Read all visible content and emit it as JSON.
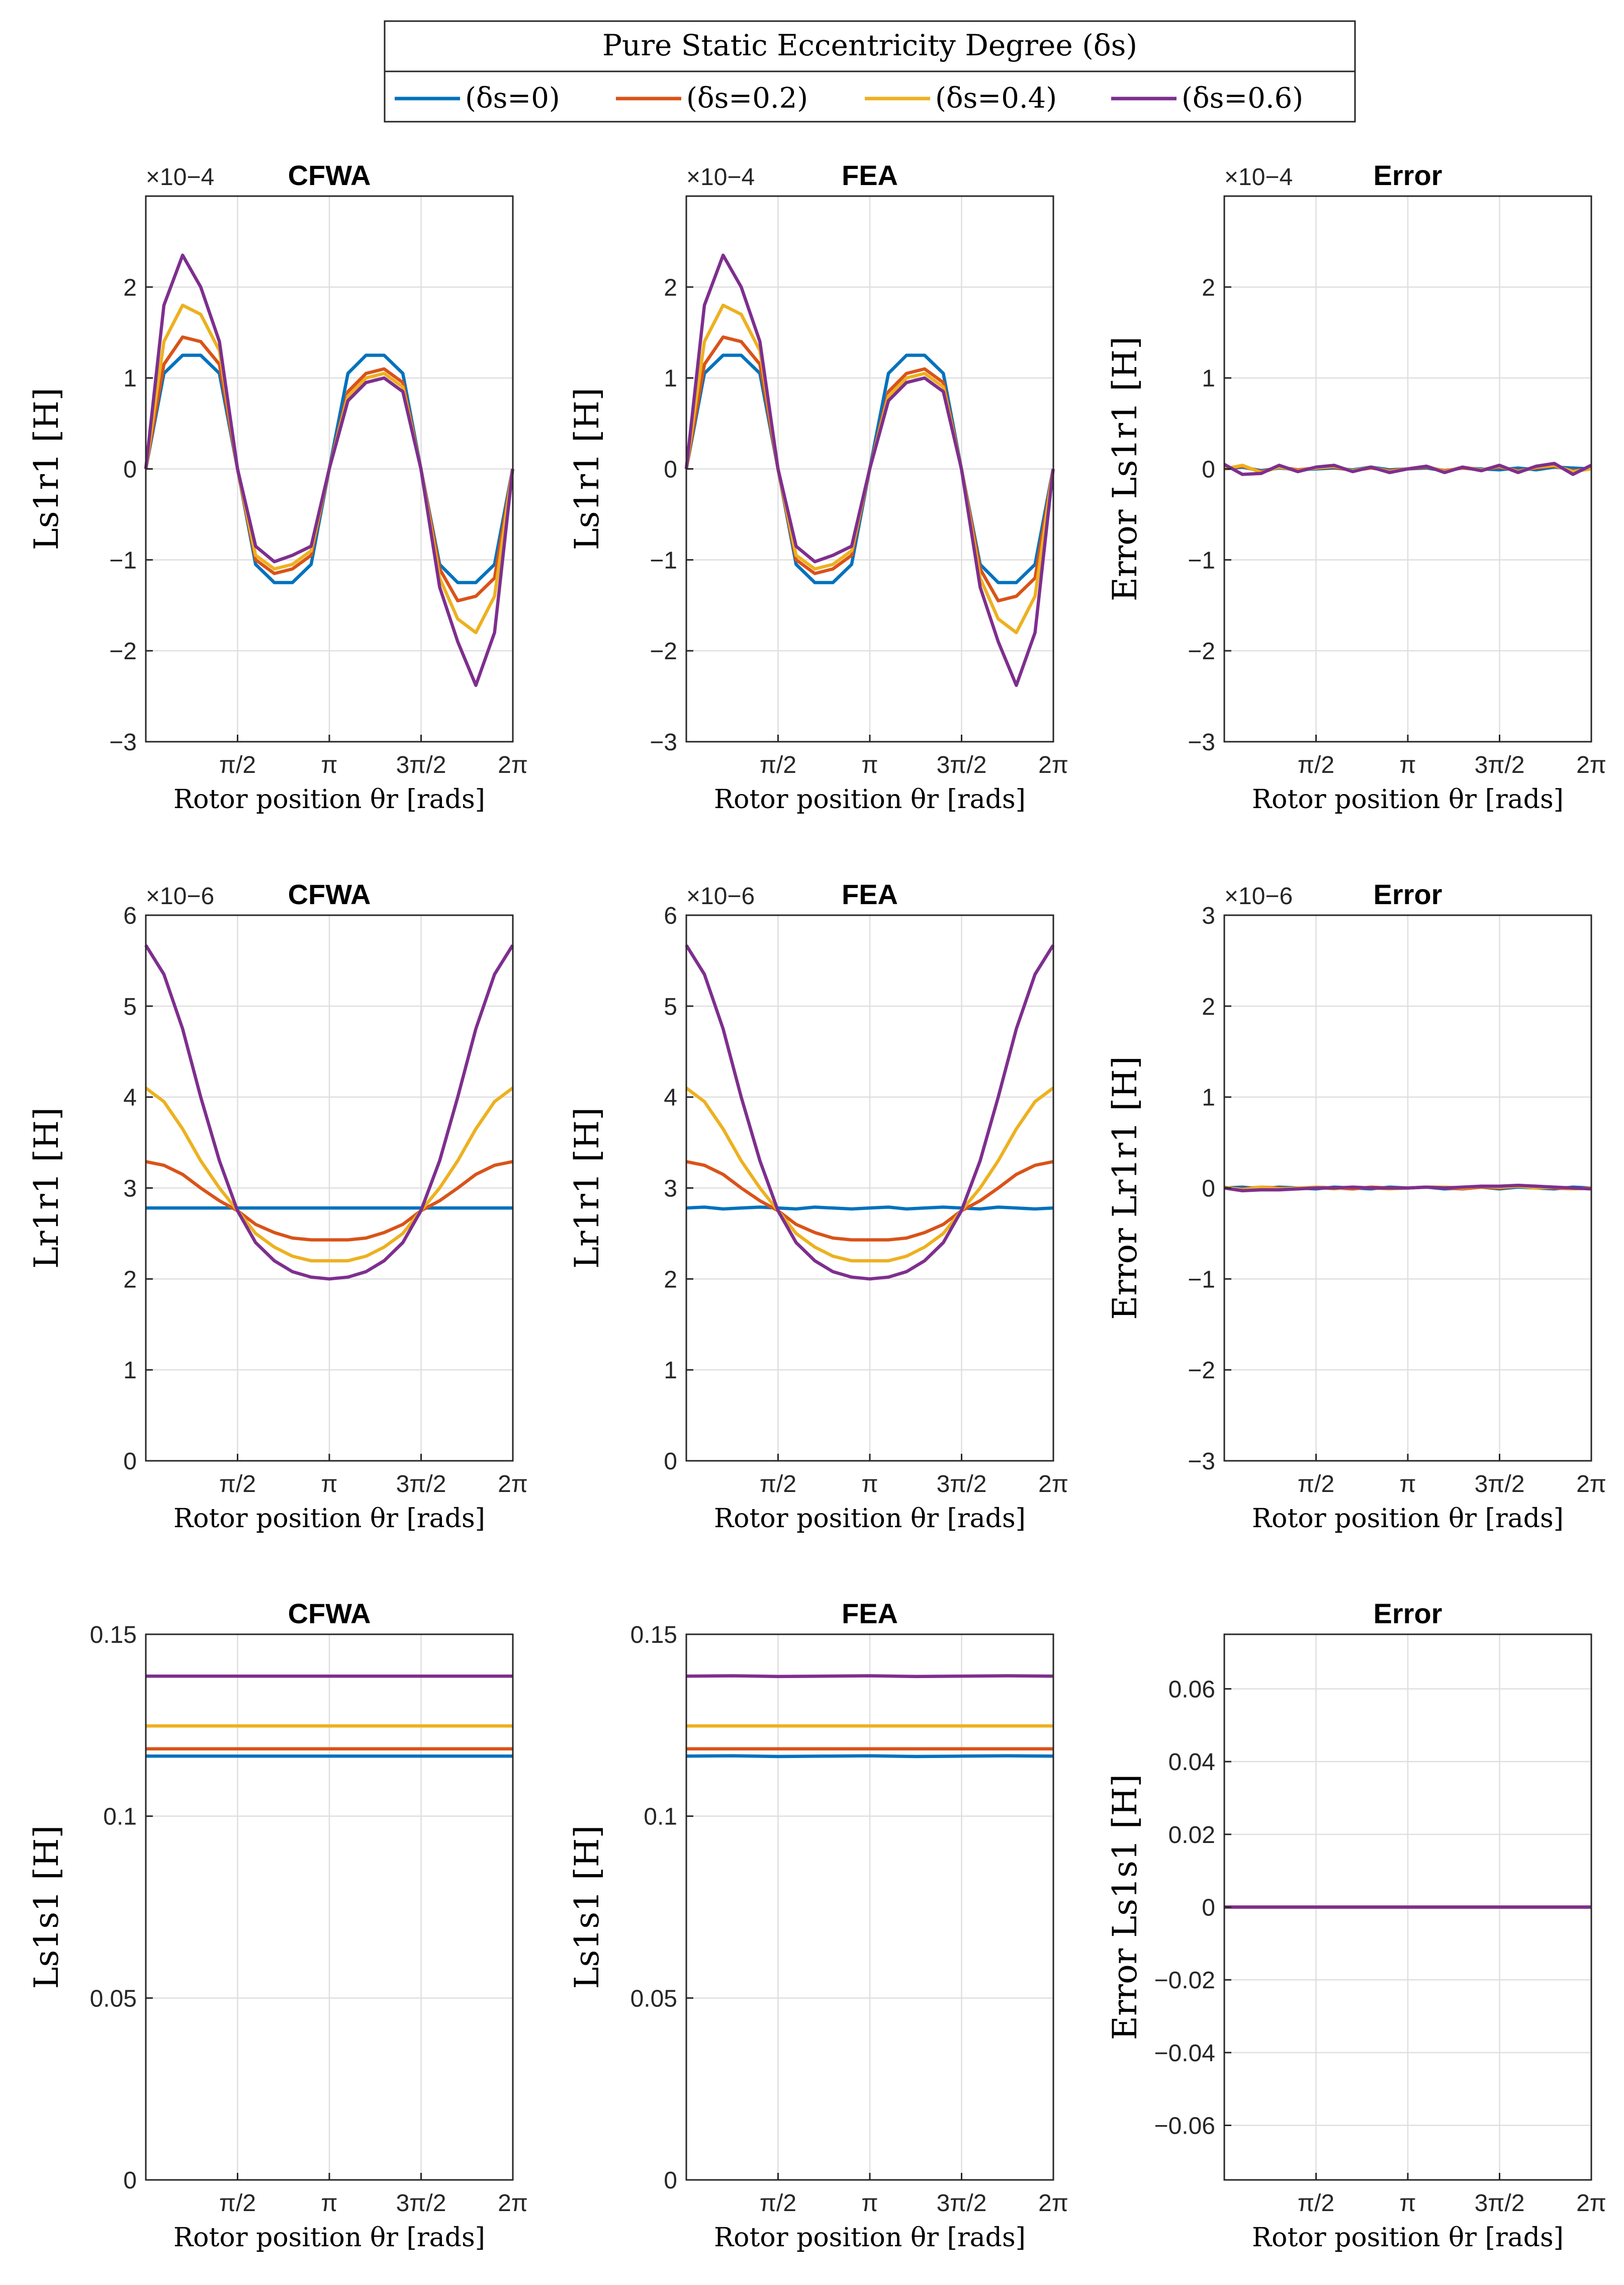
{
  "legend": {
    "title": "Pure Static Eccentricity Degree (δs)",
    "entries": [
      "(δs=0)",
      "(δs=0.2)",
      "(δs=0.4)",
      "(δs=0.6)"
    ]
  },
  "colors": {
    "series": [
      "#0072BD",
      "#D95319",
      "#EDB120",
      "#7E2F8E"
    ],
    "grid": "#DFDFDF",
    "axis": "#262626"
  },
  "common": {
    "xlabel": "Rotor position θr [rads]",
    "xticks": [
      "π/2",
      "π",
      "3π/2",
      "2π"
    ]
  },
  "chart_data": [
    {
      "type": "line",
      "title": "CFWA",
      "ylabel": "Ls1r1 [H]",
      "exponent_label": "×10−4",
      "xlim": [
        0,
        6.2832
      ],
      "ylim": [
        -3,
        3
      ],
      "yticks": [
        "−3",
        "−2",
        "−1",
        "0",
        "1",
        "2"
      ],
      "x": [
        0.0,
        0.31,
        0.63,
        0.94,
        1.26,
        1.57,
        1.88,
        2.2,
        2.51,
        2.83,
        3.14,
        3.46,
        3.77,
        4.08,
        4.4,
        4.71,
        5.03,
        5.34,
        5.65,
        5.97,
        6.28
      ],
      "series": [
        {
          "name": "(δs=0)",
          "values": [
            0,
            1.05,
            1.25,
            1.25,
            1.05,
            0,
            -1.05,
            -1.25,
            -1.25,
            -1.05,
            0,
            1.05,
            1.25,
            1.25,
            1.05,
            0,
            -1.05,
            -1.25,
            -1.25,
            -1.05,
            0
          ]
        },
        {
          "name": "(δs=0.2)",
          "values": [
            0,
            1.15,
            1.45,
            1.4,
            1.15,
            0,
            -1.0,
            -1.15,
            -1.1,
            -0.95,
            0,
            0.85,
            1.05,
            1.1,
            0.95,
            0,
            -1.1,
            -1.45,
            -1.4,
            -1.2,
            0
          ]
        },
        {
          "name": "(δs=0.4)",
          "values": [
            0,
            1.4,
            1.8,
            1.7,
            1.3,
            0,
            -0.95,
            -1.1,
            -1.05,
            -0.9,
            0,
            0.8,
            1.0,
            1.05,
            0.9,
            0,
            -1.2,
            -1.65,
            -1.8,
            -1.4,
            0
          ]
        },
        {
          "name": "(δs=0.6)",
          "values": [
            0,
            1.8,
            2.35,
            2.0,
            1.4,
            0,
            -0.85,
            -1.02,
            -0.95,
            -0.85,
            0,
            0.75,
            0.95,
            1.0,
            0.85,
            0,
            -1.3,
            -1.9,
            -2.38,
            -1.8,
            0
          ]
        }
      ]
    },
    {
      "type": "line",
      "title": "FEA",
      "ylabel": "Ls1r1 [H]",
      "exponent_label": "×10−4",
      "xlim": [
        0,
        6.2832
      ],
      "ylim": [
        -3,
        3
      ],
      "yticks": [
        "−3",
        "−2",
        "−1",
        "0",
        "1",
        "2"
      ],
      "x": [
        0.0,
        0.31,
        0.63,
        0.94,
        1.26,
        1.57,
        1.88,
        2.2,
        2.51,
        2.83,
        3.14,
        3.46,
        3.77,
        4.08,
        4.4,
        4.71,
        5.03,
        5.34,
        5.65,
        5.97,
        6.28
      ],
      "series": [
        {
          "name": "(δs=0)",
          "values": [
            0,
            1.05,
            1.25,
            1.25,
            1.05,
            0,
            -1.05,
            -1.25,
            -1.25,
            -1.05,
            0,
            1.05,
            1.25,
            1.25,
            1.05,
            0,
            -1.05,
            -1.25,
            -1.25,
            -1.05,
            0
          ]
        },
        {
          "name": "(δs=0.2)",
          "values": [
            0,
            1.15,
            1.45,
            1.4,
            1.15,
            0,
            -1.0,
            -1.15,
            -1.1,
            -0.95,
            0,
            0.85,
            1.05,
            1.1,
            0.95,
            0,
            -1.1,
            -1.45,
            -1.4,
            -1.2,
            0
          ]
        },
        {
          "name": "(δs=0.4)",
          "values": [
            0,
            1.4,
            1.8,
            1.7,
            1.3,
            0,
            -0.95,
            -1.1,
            -1.05,
            -0.9,
            0,
            0.8,
            1.0,
            1.05,
            0.9,
            0,
            -1.2,
            -1.65,
            -1.8,
            -1.4,
            0
          ]
        },
        {
          "name": "(δs=0.6)",
          "values": [
            0,
            1.8,
            2.35,
            2.0,
            1.4,
            0,
            -0.85,
            -1.02,
            -0.95,
            -0.85,
            0,
            0.75,
            0.95,
            1.0,
            0.85,
            0,
            -1.3,
            -1.9,
            -2.38,
            -1.8,
            0
          ]
        }
      ]
    },
    {
      "type": "line",
      "title": "Error",
      "ylabel": "Error Ls1r1 [H]",
      "exponent_label": "×10−4",
      "xlim": [
        0,
        6.2832
      ],
      "ylim": [
        -3,
        3
      ],
      "yticks": [
        "−3",
        "−2",
        "−1",
        "0",
        "1",
        "2"
      ],
      "x": [
        0.0,
        0.31,
        0.63,
        0.94,
        1.26,
        1.57,
        1.88,
        2.2,
        2.51,
        2.83,
        3.14,
        3.46,
        3.77,
        4.08,
        4.4,
        4.71,
        5.03,
        5.34,
        5.65,
        5.97,
        6.28
      ],
      "series": [
        {
          "name": "(δs=0)",
          "values": [
            0,
            0.02,
            -0.02,
            0.01,
            -0.01,
            0,
            0.01,
            -0.01,
            0.02,
            -0.01,
            0,
            0.01,
            -0.02,
            0.01,
            0,
            -0.01,
            0.01,
            -0.01,
            0.02,
            0.01,
            0
          ]
        },
        {
          "name": "(δs=0.2)",
          "values": [
            0,
            0.03,
            -0.03,
            0.02,
            -0.01,
            0.01,
            0.02,
            -0.02,
            0.01,
            -0.02,
            0,
            0.02,
            -0.02,
            0.01,
            -0.01,
            0.02,
            -0.02,
            0.01,
            0.03,
            -0.02,
            0
          ]
        },
        {
          "name": "(δs=0.4)",
          "values": [
            0,
            0.04,
            -0.04,
            0.02,
            -0.02,
            0.01,
            0.03,
            -0.02,
            0.02,
            -0.03,
            0,
            0.03,
            -0.03,
            0.02,
            -0.01,
            0.03,
            -0.03,
            0.02,
            0.04,
            -0.03,
            0
          ]
        },
        {
          "name": "(δs=0.6)",
          "values": [
            0.05,
            -0.06,
            -0.05,
            0.04,
            -0.03,
            0.02,
            0.04,
            -0.03,
            0.02,
            -0.04,
            0,
            0.03,
            -0.04,
            0.02,
            -0.02,
            0.04,
            -0.04,
            0.03,
            0.06,
            -0.06,
            0.04
          ]
        }
      ]
    },
    {
      "type": "line",
      "title": "CFWA",
      "ylabel": "Lr1r1 [H]",
      "exponent_label": "×10−6",
      "xlim": [
        0,
        6.2832
      ],
      "ylim": [
        0,
        6
      ],
      "yticks": [
        "0",
        "1",
        "2",
        "3",
        "4",
        "5",
        "6"
      ],
      "x": [
        0.0,
        0.31,
        0.63,
        0.94,
        1.26,
        1.57,
        1.88,
        2.2,
        2.51,
        2.83,
        3.14,
        3.46,
        3.77,
        4.08,
        4.4,
        4.71,
        5.03,
        5.34,
        5.65,
        5.97,
        6.28
      ],
      "series": [
        {
          "name": "(δs=0)",
          "values": [
            2.78,
            2.78,
            2.78,
            2.78,
            2.78,
            2.78,
            2.78,
            2.78,
            2.78,
            2.78,
            2.78,
            2.78,
            2.78,
            2.78,
            2.78,
            2.78,
            2.78,
            2.78,
            2.78,
            2.78,
            2.78
          ]
        },
        {
          "name": "(δs=0.2)",
          "values": [
            3.29,
            3.25,
            3.15,
            3.0,
            2.86,
            2.75,
            2.6,
            2.51,
            2.45,
            2.43,
            2.43,
            2.43,
            2.45,
            2.51,
            2.6,
            2.75,
            2.86,
            3.0,
            3.15,
            3.25,
            3.29
          ]
        },
        {
          "name": "(δs=0.4)",
          "values": [
            4.1,
            3.95,
            3.65,
            3.3,
            3.0,
            2.75,
            2.5,
            2.35,
            2.25,
            2.2,
            2.2,
            2.2,
            2.25,
            2.35,
            2.5,
            2.75,
            3.0,
            3.3,
            3.65,
            3.95,
            4.1
          ]
        },
        {
          "name": "(δs=0.6)",
          "values": [
            5.67,
            5.35,
            4.75,
            4.0,
            3.3,
            2.75,
            2.4,
            2.2,
            2.08,
            2.02,
            2.0,
            2.02,
            2.08,
            2.2,
            2.4,
            2.75,
            3.3,
            4.0,
            4.75,
            5.35,
            5.67
          ]
        }
      ]
    },
    {
      "type": "line",
      "title": "FEA",
      "ylabel": "Lr1r1 [H]",
      "exponent_label": "×10−6",
      "xlim": [
        0,
        6.2832
      ],
      "ylim": [
        0,
        6
      ],
      "yticks": [
        "0",
        "1",
        "2",
        "3",
        "4",
        "5",
        "6"
      ],
      "x": [
        0.0,
        0.31,
        0.63,
        0.94,
        1.26,
        1.57,
        1.88,
        2.2,
        2.51,
        2.83,
        3.14,
        3.46,
        3.77,
        4.08,
        4.4,
        4.71,
        5.03,
        5.34,
        5.65,
        5.97,
        6.28
      ],
      "series": [
        {
          "name": "(δs=0)",
          "values": [
            2.78,
            2.79,
            2.77,
            2.78,
            2.79,
            2.78,
            2.77,
            2.79,
            2.78,
            2.77,
            2.78,
            2.79,
            2.77,
            2.78,
            2.79,
            2.78,
            2.77,
            2.79,
            2.78,
            2.77,
            2.78
          ]
        },
        {
          "name": "(δs=0.2)",
          "values": [
            3.29,
            3.25,
            3.15,
            3.0,
            2.86,
            2.75,
            2.6,
            2.51,
            2.45,
            2.43,
            2.43,
            2.43,
            2.45,
            2.51,
            2.6,
            2.75,
            2.86,
            3.0,
            3.15,
            3.25,
            3.29
          ]
        },
        {
          "name": "(δs=0.4)",
          "values": [
            4.1,
            3.95,
            3.65,
            3.3,
            3.0,
            2.75,
            2.5,
            2.35,
            2.25,
            2.2,
            2.2,
            2.2,
            2.25,
            2.35,
            2.5,
            2.75,
            3.0,
            3.3,
            3.65,
            3.95,
            4.1
          ]
        },
        {
          "name": "(δs=0.6)",
          "values": [
            5.67,
            5.35,
            4.75,
            4.0,
            3.3,
            2.75,
            2.4,
            2.2,
            2.08,
            2.02,
            2.0,
            2.02,
            2.08,
            2.2,
            2.4,
            2.75,
            3.3,
            4.0,
            4.75,
            5.35,
            5.67
          ]
        }
      ]
    },
    {
      "type": "line",
      "title": "Error",
      "ylabel": "Error Lr1r1 [H]",
      "exponent_label": "×10−6",
      "xlim": [
        0,
        6.2832
      ],
      "ylim": [
        -3,
        3
      ],
      "yticks": [
        "−3",
        "−2",
        "−1",
        "0",
        "1",
        "2",
        "3"
      ],
      "x": [
        0.0,
        0.31,
        0.63,
        0.94,
        1.26,
        1.57,
        1.88,
        2.2,
        2.51,
        2.83,
        3.14,
        3.46,
        3.77,
        4.08,
        4.4,
        4.71,
        5.03,
        5.34,
        5.65,
        5.97,
        6.28
      ],
      "series": [
        {
          "name": "(δs=0)",
          "values": [
            0,
            0.01,
            -0.01,
            0.01,
            0,
            -0.01,
            0.01,
            0,
            -0.01,
            0.01,
            0,
            0.01,
            -0.01,
            0,
            0.01,
            -0.01,
            0.01,
            0,
            -0.01,
            0.01,
            0
          ]
        },
        {
          "name": "(δs=0.2)",
          "values": [
            0,
            -0.01,
            0.01,
            0,
            -0.01,
            0.01,
            0,
            -0.01,
            0.01,
            0,
            0,
            0.01,
            0,
            -0.01,
            0.01,
            0,
            0.02,
            0.01,
            0,
            -0.01,
            0
          ]
        },
        {
          "name": "(δs=0.4)",
          "values": [
            0.01,
            -0.02,
            0.01,
            -0.01,
            0,
            0.01,
            -0.01,
            0.01,
            0,
            -0.01,
            0,
            0.01,
            0.01,
            0,
            0.02,
            0.01,
            0.02,
            0,
            0.01,
            -0.01,
            0
          ]
        },
        {
          "name": "(δs=0.6)",
          "values": [
            0,
            -0.03,
            -0.02,
            -0.02,
            -0.01,
            0,
            0,
            0.01,
            0,
            0,
            0,
            0.01,
            0,
            0.01,
            0.02,
            0.02,
            0.03,
            0.02,
            0.01,
            0,
            -0.01
          ]
        }
      ]
    },
    {
      "type": "line",
      "title": "CFWA",
      "ylabel": "Ls1s1 [H]",
      "exponent_label": "",
      "xlim": [
        0,
        6.2832
      ],
      "ylim": [
        0,
        0.15
      ],
      "yticks": [
        "0",
        "0.05",
        "0.1",
        "0.15"
      ],
      "x": [
        0.0,
        0.79,
        1.57,
        2.36,
        3.14,
        3.93,
        4.71,
        5.5,
        6.28
      ],
      "series": [
        {
          "name": "(δs=0)",
          "values": [
            0.1165,
            0.1165,
            0.1165,
            0.1165,
            0.1165,
            0.1165,
            0.1165,
            0.1165,
            0.1165
          ]
        },
        {
          "name": "(δs=0.2)",
          "values": [
            0.1185,
            0.1185,
            0.1185,
            0.1185,
            0.1185,
            0.1185,
            0.1185,
            0.1185,
            0.1185
          ]
        },
        {
          "name": "(δs=0.4)",
          "values": [
            0.1248,
            0.1248,
            0.1248,
            0.1248,
            0.1248,
            0.1248,
            0.1248,
            0.1248,
            0.1248
          ]
        },
        {
          "name": "(δs=0.6)",
          "values": [
            0.1385,
            0.1385,
            0.1385,
            0.1385,
            0.1385,
            0.1385,
            0.1385,
            0.1385,
            0.1385
          ]
        }
      ]
    },
    {
      "type": "line",
      "title": "FEA",
      "ylabel": "Ls1s1 [H]",
      "exponent_label": "",
      "xlim": [
        0,
        6.2832
      ],
      "ylim": [
        0,
        0.15
      ],
      "yticks": [
        "0",
        "0.05",
        "0.1",
        "0.15"
      ],
      "x": [
        0.0,
        0.79,
        1.57,
        2.36,
        3.14,
        3.93,
        4.71,
        5.5,
        6.28
      ],
      "series": [
        {
          "name": "(δs=0)",
          "values": [
            0.1165,
            0.1166,
            0.1164,
            0.1165,
            0.1166,
            0.1164,
            0.1165,
            0.1166,
            0.1165
          ]
        },
        {
          "name": "(δs=0.2)",
          "values": [
            0.1185,
            0.1185,
            0.1185,
            0.1185,
            0.1185,
            0.1185,
            0.1185,
            0.1185,
            0.1185
          ]
        },
        {
          "name": "(δs=0.4)",
          "values": [
            0.1248,
            0.1248,
            0.1248,
            0.1248,
            0.1248,
            0.1248,
            0.1248,
            0.1248,
            0.1248
          ]
        },
        {
          "name": "(δs=0.6)",
          "values": [
            0.1385,
            0.1386,
            0.1384,
            0.1385,
            0.1386,
            0.1384,
            0.1385,
            0.1386,
            0.1385
          ]
        }
      ]
    },
    {
      "type": "line",
      "title": "Error",
      "ylabel": "Error Ls1s1 [H]",
      "exponent_label": "",
      "xlim": [
        0,
        6.2832
      ],
      "ylim": [
        -0.075,
        0.075
      ],
      "yticks": [
        "−0.06",
        "−0.04",
        "−0.02",
        "0",
        "0.02",
        "0.04",
        "0.06"
      ],
      "x": [
        0.0,
        0.79,
        1.57,
        2.36,
        3.14,
        3.93,
        4.71,
        5.5,
        6.28
      ],
      "series": [
        {
          "name": "(δs=0)",
          "values": [
            0,
            0,
            0,
            0,
            0,
            0,
            0,
            0,
            0
          ]
        },
        {
          "name": "(δs=0.2)",
          "values": [
            0,
            0,
            0,
            0,
            0,
            0,
            0,
            0,
            0
          ]
        },
        {
          "name": "(δs=0.4)",
          "values": [
            0,
            0,
            0,
            0,
            0,
            0,
            0,
            0,
            0
          ]
        },
        {
          "name": "(δs=0.6)",
          "values": [
            0,
            0,
            0,
            0,
            0,
            0,
            0,
            0,
            0
          ]
        }
      ]
    }
  ]
}
